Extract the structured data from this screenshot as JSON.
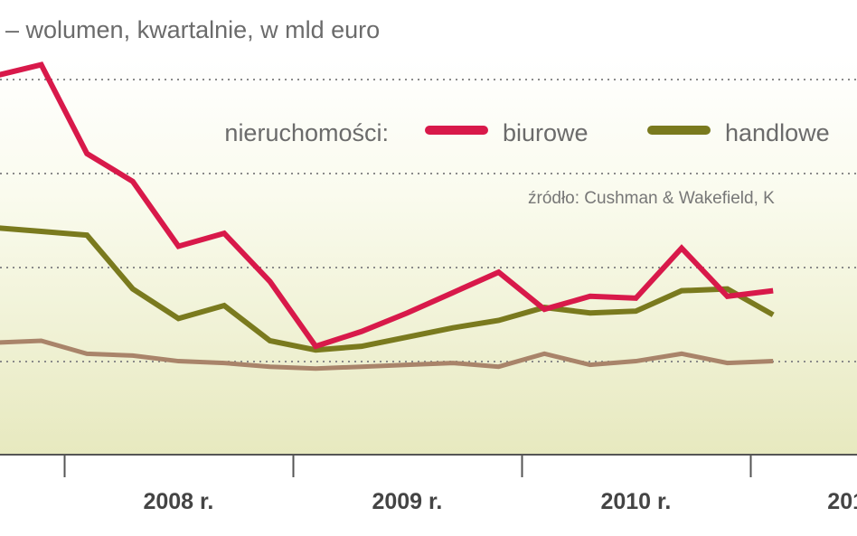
{
  "subtitle": "– wolumen, kwartalnie, w mld euro",
  "source": "źródło: Cushman & Wakefield, K",
  "legend": {
    "prefix": "nieruchomości:",
    "items": [
      {
        "label": "biurowe",
        "color": "#d8194a"
      },
      {
        "label": "handlowe",
        "color": "#7a7a1e"
      }
    ]
  },
  "colors": {
    "background_top": "#ffffff",
    "background_bottom": "#e7e9bf",
    "gridline": "#8a8a8a",
    "axis": "#555555",
    "third_series": "#a9846a"
  },
  "chart_data": {
    "type": "line",
    "grid": true,
    "x_tick_labels": [
      "2008 r.",
      "2009 r.",
      "2010 r.",
      "201"
    ],
    "x_quarter_index": [
      0,
      1,
      2,
      3,
      4,
      5,
      6,
      7,
      8,
      9,
      10,
      11,
      12,
      13,
      14,
      15,
      16,
      17
    ],
    "series": [
      {
        "name": "biurowe",
        "color": "#d8194a",
        "values": [
          10.3,
          10.9,
          6.1,
          4.6,
          1.1,
          1.8,
          -0.8,
          -4.3,
          -3.5,
          -2.5,
          -1.4,
          -0.3,
          -2.3,
          -1.6,
          -1.7,
          1.0,
          -1.6,
          -1.3
        ]
      },
      {
        "name": "handlowe",
        "color": "#7a7a1e",
        "values": [
          2.1,
          1.9,
          1.7,
          -1.2,
          -2.8,
          -2.1,
          -4.0,
          -4.5,
          -4.3,
          -3.8,
          -3.3,
          -2.9,
          -2.2,
          -2.5,
          -2.4,
          -1.3,
          -1.2,
          -2.6
        ]
      },
      {
        "color": "#a9846a",
        "values": [
          -4.1,
          -4.0,
          -4.7,
          -4.8,
          -5.1,
          -5.2,
          -5.4,
          -5.5,
          -5.4,
          -5.3,
          -5.2,
          -5.4,
          -4.7,
          -5.3,
          -5.1,
          -4.7,
          -5.2,
          -5.1
        ]
      }
    ]
  }
}
